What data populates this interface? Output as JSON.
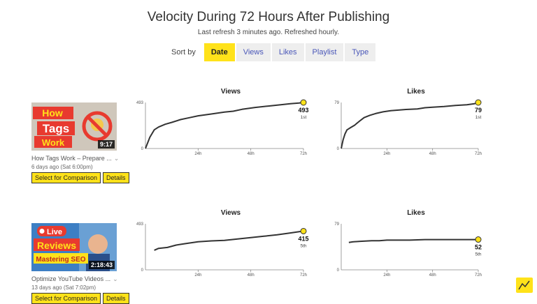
{
  "header": {
    "title": "Velocity During 72 Hours After Publishing",
    "subtitle": "Last refresh 3 minutes ago. Refreshed hourly."
  },
  "sort": {
    "label": "Sort by",
    "options": [
      "Date",
      "Views",
      "Likes",
      "Playlist",
      "Type"
    ],
    "active": "Date"
  },
  "videos": [
    {
      "thumb_lines": [
        "How",
        "Tags",
        "Work"
      ],
      "duration": "9:17",
      "title": "How Tags Work – Prepare ...",
      "date": "6 days ago (Sat 6:00pm)",
      "compare_label": "Select for Comparison",
      "details_label": "Details",
      "charts": [
        {
          "title": "Views",
          "ymax": "493",
          "ymin": "0",
          "x_ticks": [
            "24h",
            "48h",
            "72h"
          ],
          "end_value": "493",
          "rank": "1st",
          "points": [
            [
              0,
              0
            ],
            [
              2,
              120
            ],
            [
              4,
              200
            ],
            [
              6,
              230
            ],
            [
              9,
              260
            ],
            [
              12,
              280
            ],
            [
              16,
              310
            ],
            [
              20,
              330
            ],
            [
              24,
              350
            ],
            [
              30,
              370
            ],
            [
              36,
              390
            ],
            [
              40,
              400
            ],
            [
              44,
              420
            ],
            [
              50,
              440
            ],
            [
              56,
              455
            ],
            [
              62,
              470
            ],
            [
              66,
              480
            ],
            [
              70,
              488
            ],
            [
              72,
              493
            ]
          ]
        },
        {
          "title": "Likes",
          "ymax": "79",
          "ymin": "0",
          "x_ticks": [
            "24h",
            "48h",
            "72h"
          ],
          "end_value": "79",
          "rank": "1st",
          "points": [
            [
              0,
              0
            ],
            [
              1,
              15
            ],
            [
              2,
              25
            ],
            [
              3,
              32
            ],
            [
              5,
              36
            ],
            [
              7,
              40
            ],
            [
              10,
              48
            ],
            [
              12,
              53
            ],
            [
              15,
              57
            ],
            [
              18,
              60
            ],
            [
              22,
              63
            ],
            [
              26,
              65
            ],
            [
              30,
              66
            ],
            [
              34,
              67
            ],
            [
              40,
              68
            ],
            [
              44,
              70
            ],
            [
              48,
              71
            ],
            [
              54,
              72
            ],
            [
              60,
              74
            ],
            [
              66,
              75
            ],
            [
              70,
              77
            ],
            [
              72,
              79
            ]
          ]
        }
      ]
    },
    {
      "thumb_lines": [
        "Live",
        "Reviews",
        "Mastering SEO"
      ],
      "duration": "2:18:43",
      "title": "Optimize YouTube Videos ...",
      "date": "13 days ago (Sat 7:02pm)",
      "compare_label": "Select for Comparison",
      "details_label": "Details",
      "charts": [
        {
          "title": "Views",
          "ymax": "493",
          "ymin": "0",
          "x_ticks": [
            "24h",
            "48h",
            "72h"
          ],
          "end_value": "415",
          "rank": "5th",
          "points": [
            [
              4,
              210
            ],
            [
              6,
              230
            ],
            [
              10,
              240
            ],
            [
              14,
              265
            ],
            [
              18,
              280
            ],
            [
              24,
              300
            ],
            [
              30,
              310
            ],
            [
              36,
              315
            ],
            [
              42,
              330
            ],
            [
              48,
              345
            ],
            [
              54,
              360
            ],
            [
              60,
              375
            ],
            [
              66,
              395
            ],
            [
              72,
              415
            ]
          ]
        },
        {
          "title": "Likes",
          "ymax": "79",
          "ymin": "0",
          "x_ticks": [
            "24h",
            "48h",
            "72h"
          ],
          "end_value": "52",
          "rank": "5th",
          "points": [
            [
              4,
              47
            ],
            [
              6,
              48
            ],
            [
              10,
              49
            ],
            [
              16,
              50
            ],
            [
              20,
              50
            ],
            [
              24,
              51
            ],
            [
              30,
              51
            ],
            [
              36,
              51
            ],
            [
              44,
              52
            ],
            [
              52,
              52
            ],
            [
              60,
              52
            ],
            [
              66,
              52
            ],
            [
              72,
              52
            ]
          ]
        }
      ]
    }
  ],
  "colors": {
    "accent": "#ffe21a",
    "link": "#4a57b8",
    "line": "#333333"
  }
}
